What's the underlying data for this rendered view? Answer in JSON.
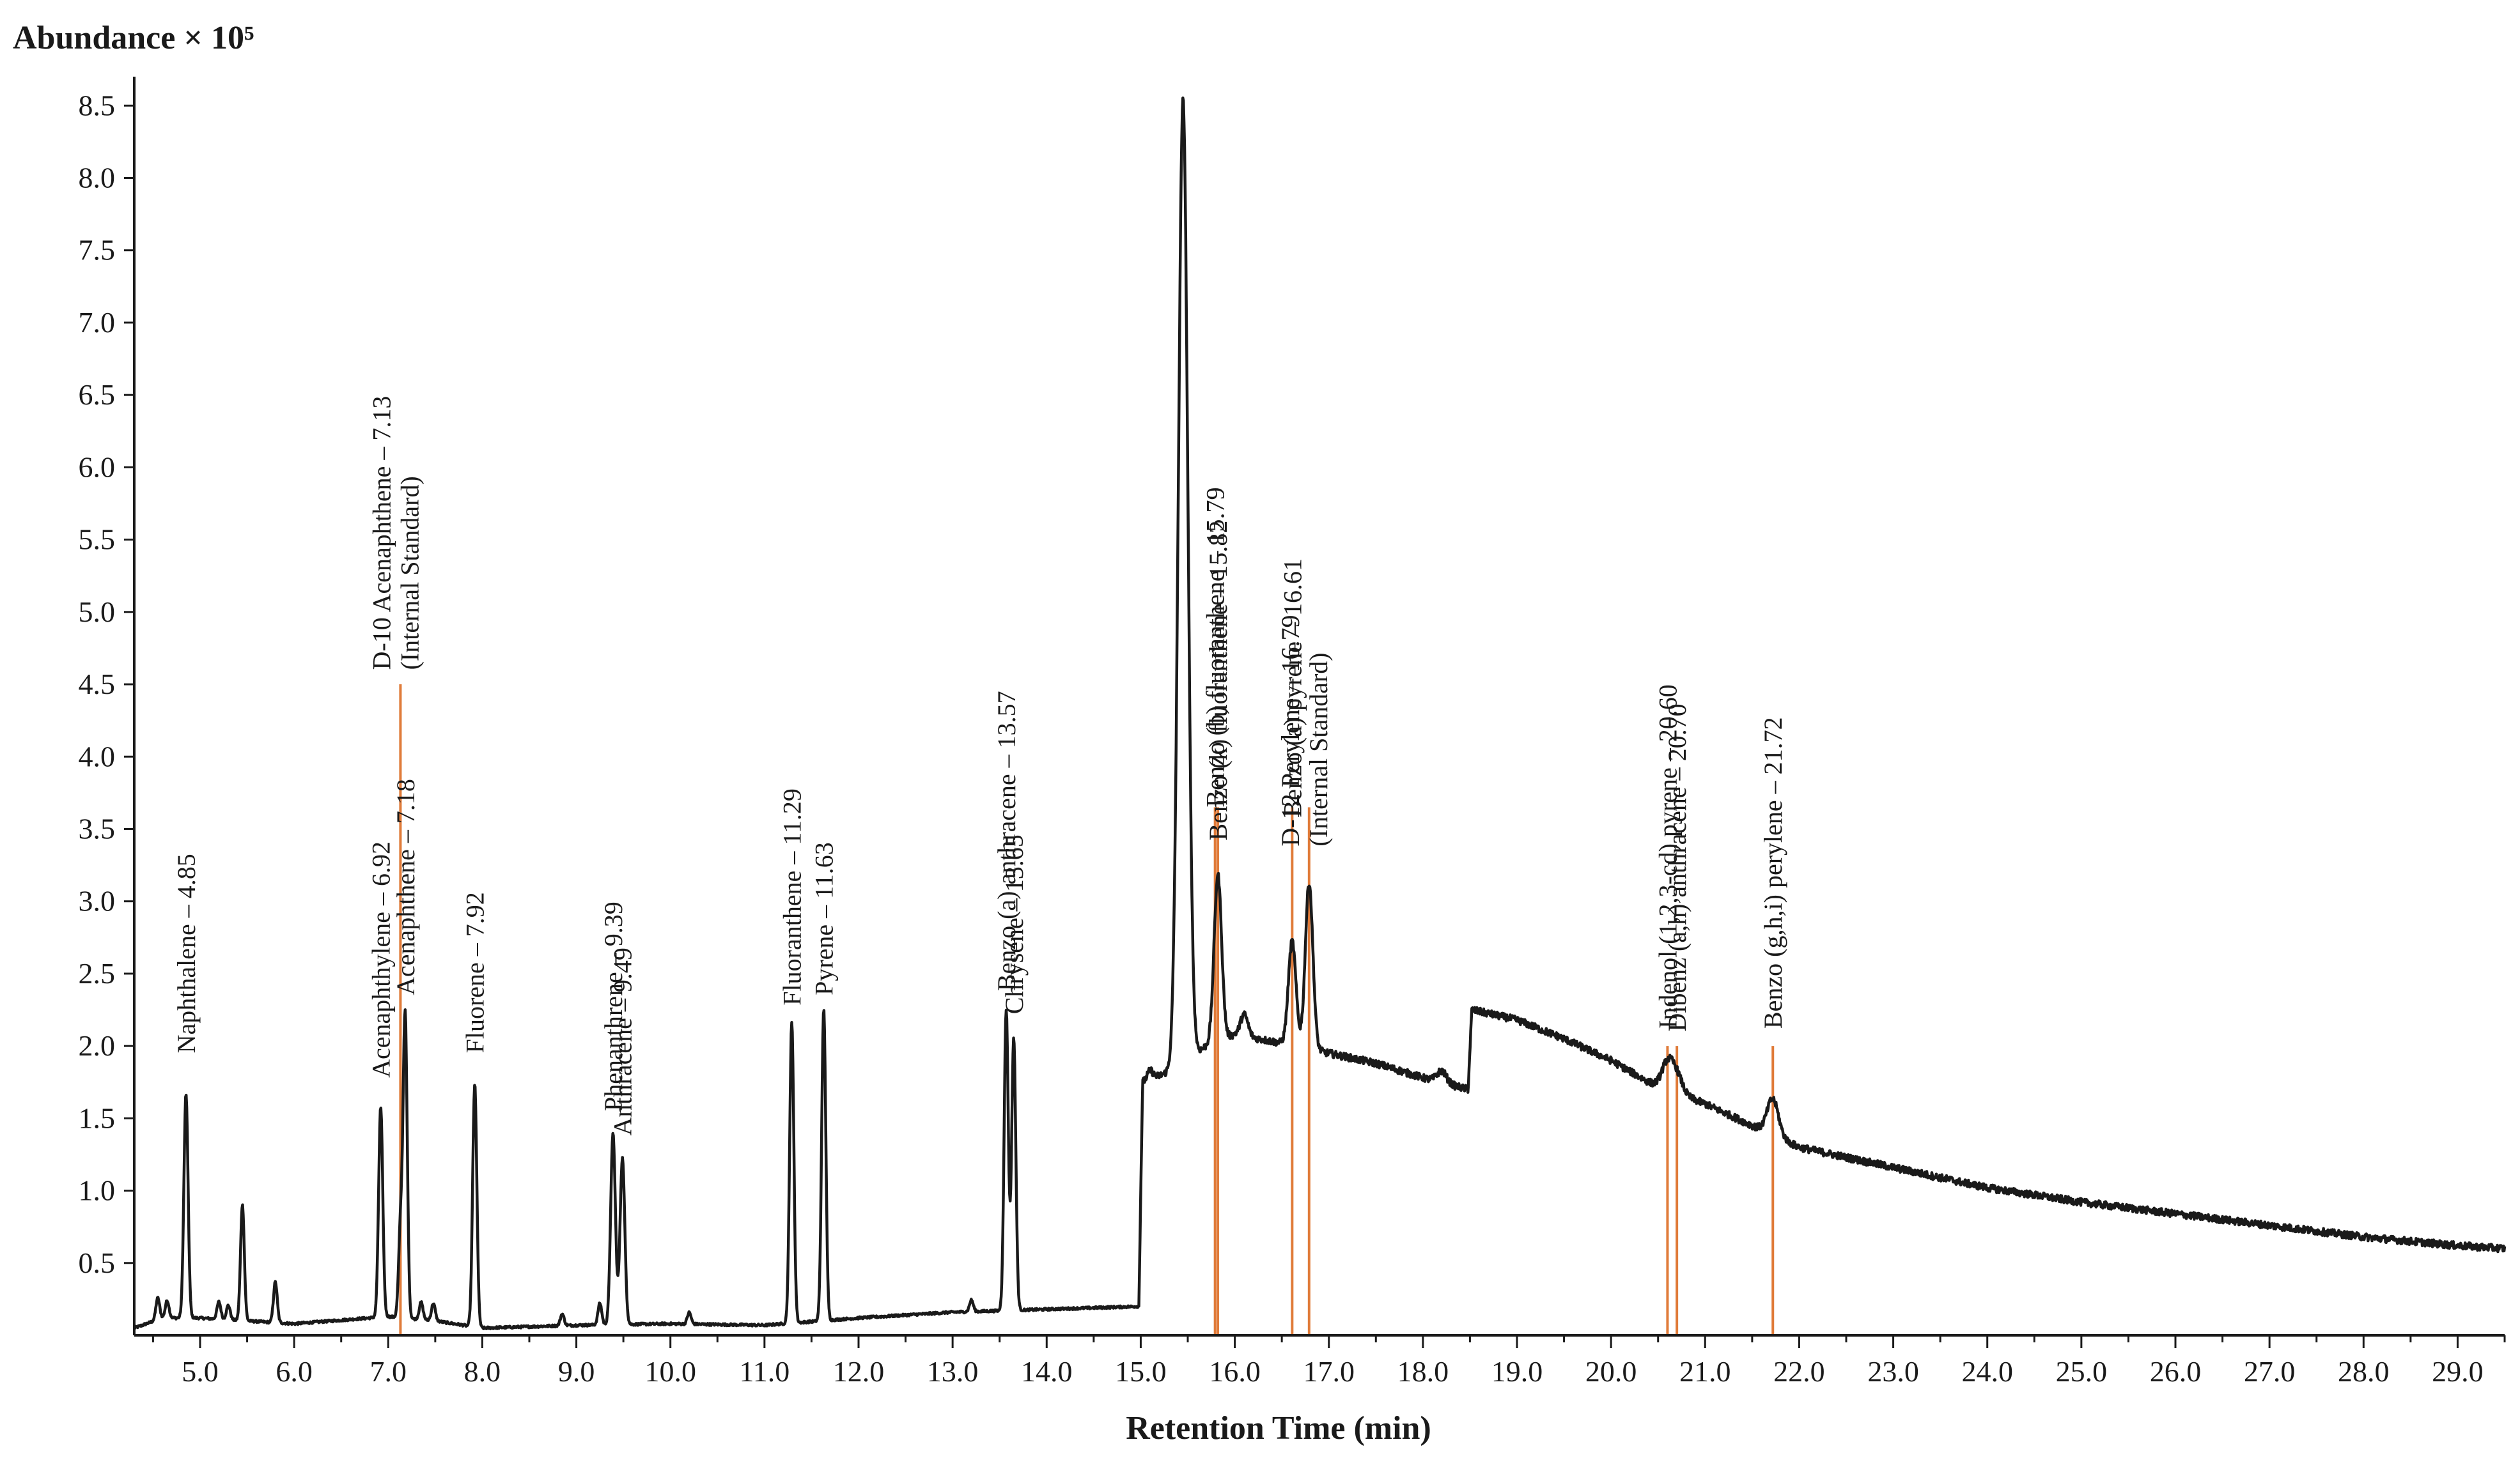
{
  "chart_data": {
    "type": "line",
    "title": "",
    "ylabel": "Abundance × 10⁵",
    "xlabel": "Retention Time (min)",
    "xlim": [
      4.3,
      29.5
    ],
    "ylim": [
      0,
      8.7
    ],
    "x_ticks": [
      "5.0",
      "6.0",
      "7.0",
      "8.0",
      "9.0",
      "10.0",
      "11.0",
      "12.0",
      "13.0",
      "14.0",
      "15.0",
      "16.0",
      "17.0",
      "18.0",
      "19.0",
      "20.0",
      "21.0",
      "22.0",
      "23.0",
      "24.0",
      "25.0",
      "26.0",
      "27.0",
      "28.0",
      "29.0"
    ],
    "y_ticks": [
      "0.5",
      "1.0",
      "1.5",
      "2.0",
      "2.5",
      "3.0",
      "3.5",
      "4.0",
      "4.5",
      "5.0",
      "5.5",
      "6.0",
      "6.5",
      "7.0",
      "7.5",
      "8.0",
      "8.5"
    ],
    "grid": false,
    "legend": "none",
    "baseline": [
      [
        4.3,
        0.05
      ],
      [
        4.6,
        0.12
      ],
      [
        5.0,
        0.12
      ],
      [
        6.0,
        0.08
      ],
      [
        7.0,
        0.13
      ],
      [
        7.5,
        0.1
      ],
      [
        8.0,
        0.05
      ],
      [
        9.0,
        0.07
      ],
      [
        10.0,
        0.08
      ],
      [
        11.0,
        0.07
      ],
      [
        12.0,
        0.12
      ],
      [
        13.0,
        0.16
      ],
      [
        14.0,
        0.18
      ],
      [
        14.98,
        0.2
      ],
      [
        15.02,
        1.75
      ],
      [
        15.3,
        1.82
      ],
      [
        15.7,
        2.0
      ],
      [
        16.0,
        2.08
      ],
      [
        16.5,
        2.02
      ],
      [
        17.0,
        1.95
      ],
      [
        17.5,
        1.88
      ],
      [
        18.0,
        1.78
      ],
      [
        18.48,
        1.7
      ],
      [
        18.52,
        2.25
      ],
      [
        19.0,
        2.18
      ],
      [
        19.5,
        2.05
      ],
      [
        20.0,
        1.9
      ],
      [
        20.4,
        1.75
      ],
      [
        21.0,
        1.6
      ],
      [
        21.5,
        1.45
      ],
      [
        22.0,
        1.3
      ],
      [
        23.0,
        1.16
      ],
      [
        24.0,
        1.02
      ],
      [
        25.0,
        0.92
      ],
      [
        26.0,
        0.84
      ],
      [
        27.0,
        0.76
      ],
      [
        28.0,
        0.68
      ],
      [
        29.0,
        0.62
      ],
      [
        29.5,
        0.6
      ]
    ],
    "peaks": [
      {
        "x": 4.55,
        "h": 0.15,
        "w": 0.02
      },
      {
        "x": 4.65,
        "h": 0.12,
        "w": 0.02
      },
      {
        "x": 4.85,
        "h": 1.55,
        "w": 0.022
      },
      {
        "x": 5.2,
        "h": 0.12,
        "w": 0.02
      },
      {
        "x": 5.3,
        "h": 0.1,
        "w": 0.02
      },
      {
        "x": 5.45,
        "h": 0.8,
        "w": 0.02
      },
      {
        "x": 5.8,
        "h": 0.28,
        "w": 0.02
      },
      {
        "x": 6.92,
        "h": 1.45,
        "w": 0.022
      },
      {
        "x": 7.13,
        "h": 0.6,
        "w": 0.02
      },
      {
        "x": 7.18,
        "h": 2.1,
        "w": 0.022
      },
      {
        "x": 7.35,
        "h": 0.12,
        "w": 0.02
      },
      {
        "x": 7.48,
        "h": 0.12,
        "w": 0.02
      },
      {
        "x": 7.92,
        "h": 1.68,
        "w": 0.022
      },
      {
        "x": 8.85,
        "h": 0.08,
        "w": 0.02
      },
      {
        "x": 9.25,
        "h": 0.15,
        "w": 0.02
      },
      {
        "x": 9.39,
        "h": 1.32,
        "w": 0.025
      },
      {
        "x": 9.49,
        "h": 1.15,
        "w": 0.025
      },
      {
        "x": 10.2,
        "h": 0.08,
        "w": 0.02
      },
      {
        "x": 11.29,
        "h": 2.08,
        "w": 0.022
      },
      {
        "x": 11.63,
        "h": 2.15,
        "w": 0.022
      },
      {
        "x": 13.2,
        "h": 0.08,
        "w": 0.02
      },
      {
        "x": 13.57,
        "h": 2.08,
        "w": 0.022
      },
      {
        "x": 13.65,
        "h": 1.88,
        "w": 0.022
      },
      {
        "x": 15.1,
        "h": 0.06,
        "w": 0.03
      },
      {
        "x": 15.45,
        "h": 6.65,
        "w": 0.05
      },
      {
        "x": 15.82,
        "h": 1.15,
        "w": 0.04
      },
      {
        "x": 16.1,
        "h": 0.15,
        "w": 0.04
      },
      {
        "x": 16.61,
        "h": 0.72,
        "w": 0.04
      },
      {
        "x": 16.79,
        "h": 1.15,
        "w": 0.04
      },
      {
        "x": 18.2,
        "h": 0.08,
        "w": 0.05
      },
      {
        "x": 20.6,
        "h": 0.18,
        "w": 0.06
      },
      {
        "x": 20.7,
        "h": 0.12,
        "w": 0.06
      },
      {
        "x": 21.72,
        "h": 0.25,
        "w": 0.06
      }
    ],
    "annotations": [
      {
        "x": 4.85,
        "label": "Naphthalene – 4.85"
      },
      {
        "x": 6.92,
        "label": "Acenaphthylene – 6.92"
      },
      {
        "x": 7.13,
        "label": "D-10 Acenaphthene – 7.13",
        "sub": "(Internal Standard)",
        "ref_line": true,
        "ref_top": 4.5
      },
      {
        "x": 7.18,
        "label": "Acenaphthene – 7.18"
      },
      {
        "x": 7.92,
        "label": "Fluorene – 7.92"
      },
      {
        "x": 9.39,
        "label": "Phenanthrene – 9.39"
      },
      {
        "x": 9.49,
        "label": "Anthracene – 9.49"
      },
      {
        "x": 11.29,
        "label": "Fluoranthene – 11.29"
      },
      {
        "x": 11.63,
        "label": "Pyrene – 11.63"
      },
      {
        "x": 13.57,
        "label": "Benzo (a) anthracene – 13.57"
      },
      {
        "x": 13.65,
        "label": "Chrysene – 13.65"
      },
      {
        "x": 15.79,
        "label": "Benzo (b) fluoranthene – 15.79",
        "ref_line": true,
        "ref_top": 3.65
      },
      {
        "x": 15.82,
        "label": "Benzo (k) fluoranthene – 15.82",
        "ref_line": true,
        "ref_top": 3.65
      },
      {
        "x": 16.61,
        "label": "Benzo (a) pyrene – 16.61",
        "ref_line": true,
        "ref_top": 3.65
      },
      {
        "x": 16.79,
        "label": "D-12 Perylene – 16.79",
        "sub": "(Internal Standard)",
        "ref_line": true,
        "ref_top": 3.65
      },
      {
        "x": 20.6,
        "label": "Indenol (1,2,3-cd) pyrene – 20.60",
        "ref_line": true,
        "ref_top": 2.0
      },
      {
        "x": 20.7,
        "label": "Dibenz (a,h) anthracene – 20.70",
        "ref_line": true,
        "ref_top": 2.0
      },
      {
        "x": 21.72,
        "label": "Benzo (g,h,i) perylene – 21.72",
        "ref_line": true,
        "ref_top": 2.0
      }
    ]
  }
}
